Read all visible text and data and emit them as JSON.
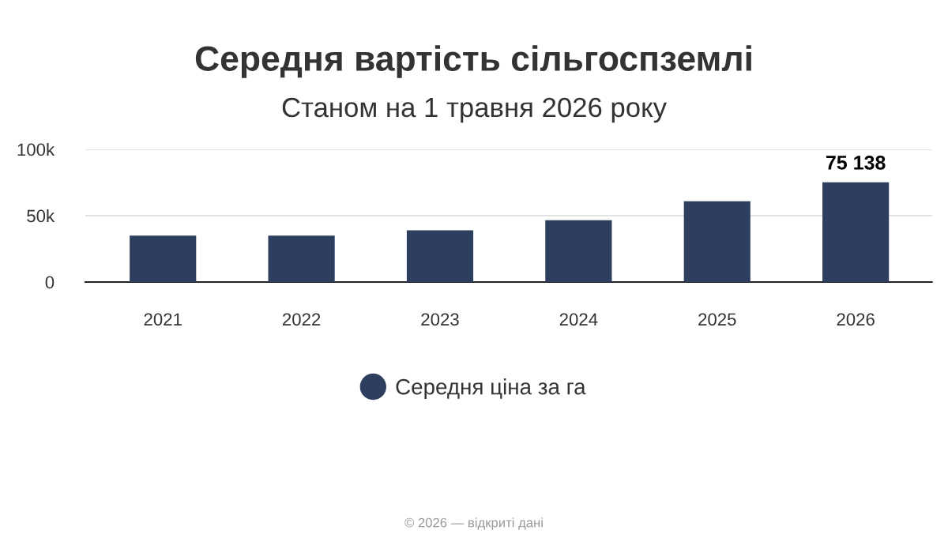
{
  "chart_data": {
    "type": "bar",
    "title": "Середня вартість сільгоспземлі",
    "subtitle": "Станом на 1 травня 2026 року",
    "categories": [
      "2021",
      "2022",
      "2023",
      "2024",
      "2025",
      "2026"
    ],
    "series": [
      {
        "name": "Середня ціна за га",
        "color": "#2e3e5e",
        "values": [
          35000,
          35000,
          39000,
          46600,
          60900,
          75138
        ],
        "value_labels": [
          null,
          null,
          null,
          null,
          null,
          "75 138"
        ]
      }
    ],
    "ylim": [
      0,
      100000
    ],
    "yticks": [
      0,
      {
        "value": 50000,
        "label": "50k"
      },
      {
        "value": 100000,
        "label": "100k"
      }
    ],
    "grid": "y",
    "legend": "bottom",
    "annotations": [
      "© 2026 — відкриті дані"
    ]
  }
}
